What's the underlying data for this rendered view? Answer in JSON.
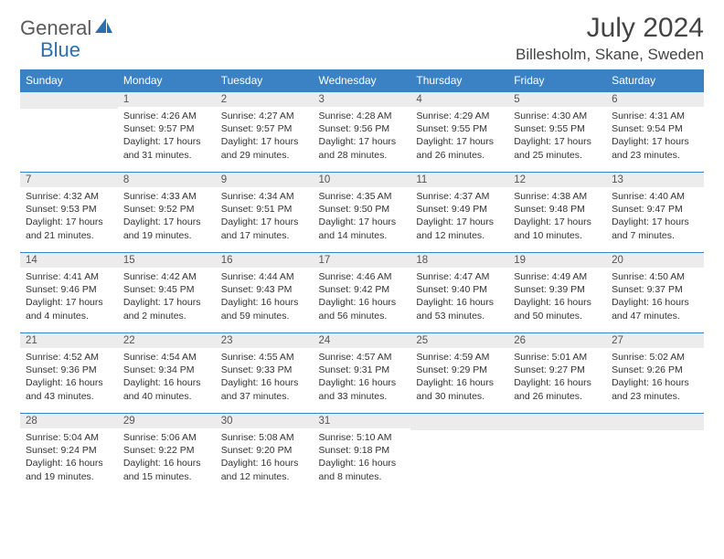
{
  "logo": {
    "text1": "General",
    "text2": "Blue"
  },
  "title": {
    "month_year": "July 2024",
    "location": "Billesholm, Skane, Sweden"
  },
  "colors": {
    "header_bg": "#3b82c4",
    "header_text": "#ffffff",
    "daynum_bg": "#ececec",
    "daynum_text": "#555555",
    "body_text": "#333333",
    "rule": "#3b82c4",
    "logo_gray": "#5a5a5a",
    "logo_blue": "#2c6fb0"
  },
  "day_headers": [
    "Sunday",
    "Monday",
    "Tuesday",
    "Wednesday",
    "Thursday",
    "Friday",
    "Saturday"
  ],
  "weeks": [
    [
      {
        "n": "",
        "sr": "",
        "ss": "",
        "dl": ""
      },
      {
        "n": "1",
        "sr": "Sunrise: 4:26 AM",
        "ss": "Sunset: 9:57 PM",
        "dl": "Daylight: 17 hours and 31 minutes."
      },
      {
        "n": "2",
        "sr": "Sunrise: 4:27 AM",
        "ss": "Sunset: 9:57 PM",
        "dl": "Daylight: 17 hours and 29 minutes."
      },
      {
        "n": "3",
        "sr": "Sunrise: 4:28 AM",
        "ss": "Sunset: 9:56 PM",
        "dl": "Daylight: 17 hours and 28 minutes."
      },
      {
        "n": "4",
        "sr": "Sunrise: 4:29 AM",
        "ss": "Sunset: 9:55 PM",
        "dl": "Daylight: 17 hours and 26 minutes."
      },
      {
        "n": "5",
        "sr": "Sunrise: 4:30 AM",
        "ss": "Sunset: 9:55 PM",
        "dl": "Daylight: 17 hours and 25 minutes."
      },
      {
        "n": "6",
        "sr": "Sunrise: 4:31 AM",
        "ss": "Sunset: 9:54 PM",
        "dl": "Daylight: 17 hours and 23 minutes."
      }
    ],
    [
      {
        "n": "7",
        "sr": "Sunrise: 4:32 AM",
        "ss": "Sunset: 9:53 PM",
        "dl": "Daylight: 17 hours and 21 minutes."
      },
      {
        "n": "8",
        "sr": "Sunrise: 4:33 AM",
        "ss": "Sunset: 9:52 PM",
        "dl": "Daylight: 17 hours and 19 minutes."
      },
      {
        "n": "9",
        "sr": "Sunrise: 4:34 AM",
        "ss": "Sunset: 9:51 PM",
        "dl": "Daylight: 17 hours and 17 minutes."
      },
      {
        "n": "10",
        "sr": "Sunrise: 4:35 AM",
        "ss": "Sunset: 9:50 PM",
        "dl": "Daylight: 17 hours and 14 minutes."
      },
      {
        "n": "11",
        "sr": "Sunrise: 4:37 AM",
        "ss": "Sunset: 9:49 PM",
        "dl": "Daylight: 17 hours and 12 minutes."
      },
      {
        "n": "12",
        "sr": "Sunrise: 4:38 AM",
        "ss": "Sunset: 9:48 PM",
        "dl": "Daylight: 17 hours and 10 minutes."
      },
      {
        "n": "13",
        "sr": "Sunrise: 4:40 AM",
        "ss": "Sunset: 9:47 PM",
        "dl": "Daylight: 17 hours and 7 minutes."
      }
    ],
    [
      {
        "n": "14",
        "sr": "Sunrise: 4:41 AM",
        "ss": "Sunset: 9:46 PM",
        "dl": "Daylight: 17 hours and 4 minutes."
      },
      {
        "n": "15",
        "sr": "Sunrise: 4:42 AM",
        "ss": "Sunset: 9:45 PM",
        "dl": "Daylight: 17 hours and 2 minutes."
      },
      {
        "n": "16",
        "sr": "Sunrise: 4:44 AM",
        "ss": "Sunset: 9:43 PM",
        "dl": "Daylight: 16 hours and 59 minutes."
      },
      {
        "n": "17",
        "sr": "Sunrise: 4:46 AM",
        "ss": "Sunset: 9:42 PM",
        "dl": "Daylight: 16 hours and 56 minutes."
      },
      {
        "n": "18",
        "sr": "Sunrise: 4:47 AM",
        "ss": "Sunset: 9:40 PM",
        "dl": "Daylight: 16 hours and 53 minutes."
      },
      {
        "n": "19",
        "sr": "Sunrise: 4:49 AM",
        "ss": "Sunset: 9:39 PM",
        "dl": "Daylight: 16 hours and 50 minutes."
      },
      {
        "n": "20",
        "sr": "Sunrise: 4:50 AM",
        "ss": "Sunset: 9:37 PM",
        "dl": "Daylight: 16 hours and 47 minutes."
      }
    ],
    [
      {
        "n": "21",
        "sr": "Sunrise: 4:52 AM",
        "ss": "Sunset: 9:36 PM",
        "dl": "Daylight: 16 hours and 43 minutes."
      },
      {
        "n": "22",
        "sr": "Sunrise: 4:54 AM",
        "ss": "Sunset: 9:34 PM",
        "dl": "Daylight: 16 hours and 40 minutes."
      },
      {
        "n": "23",
        "sr": "Sunrise: 4:55 AM",
        "ss": "Sunset: 9:33 PM",
        "dl": "Daylight: 16 hours and 37 minutes."
      },
      {
        "n": "24",
        "sr": "Sunrise: 4:57 AM",
        "ss": "Sunset: 9:31 PM",
        "dl": "Daylight: 16 hours and 33 minutes."
      },
      {
        "n": "25",
        "sr": "Sunrise: 4:59 AM",
        "ss": "Sunset: 9:29 PM",
        "dl": "Daylight: 16 hours and 30 minutes."
      },
      {
        "n": "26",
        "sr": "Sunrise: 5:01 AM",
        "ss": "Sunset: 9:27 PM",
        "dl": "Daylight: 16 hours and 26 minutes."
      },
      {
        "n": "27",
        "sr": "Sunrise: 5:02 AM",
        "ss": "Sunset: 9:26 PM",
        "dl": "Daylight: 16 hours and 23 minutes."
      }
    ],
    [
      {
        "n": "28",
        "sr": "Sunrise: 5:04 AM",
        "ss": "Sunset: 9:24 PM",
        "dl": "Daylight: 16 hours and 19 minutes."
      },
      {
        "n": "29",
        "sr": "Sunrise: 5:06 AM",
        "ss": "Sunset: 9:22 PM",
        "dl": "Daylight: 16 hours and 15 minutes."
      },
      {
        "n": "30",
        "sr": "Sunrise: 5:08 AM",
        "ss": "Sunset: 9:20 PM",
        "dl": "Daylight: 16 hours and 12 minutes."
      },
      {
        "n": "31",
        "sr": "Sunrise: 5:10 AM",
        "ss": "Sunset: 9:18 PM",
        "dl": "Daylight: 16 hours and 8 minutes."
      },
      {
        "n": "",
        "sr": "",
        "ss": "",
        "dl": ""
      },
      {
        "n": "",
        "sr": "",
        "ss": "",
        "dl": ""
      },
      {
        "n": "",
        "sr": "",
        "ss": "",
        "dl": ""
      }
    ]
  ]
}
